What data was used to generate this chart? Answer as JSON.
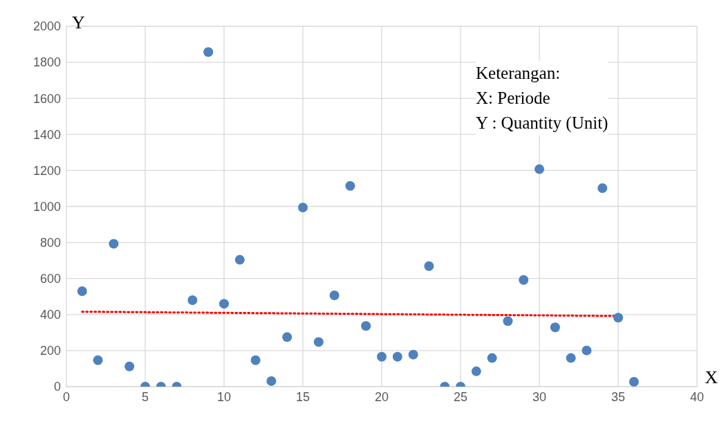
{
  "chart_data": {
    "type": "scatter",
    "xlabel": "X",
    "ylabel": "Y",
    "annotations": [
      "Keterangan:",
      "X: Periode",
      "Y : Quantity (Unit)"
    ],
    "xlim": [
      0,
      40
    ],
    "xticks": [
      0,
      5,
      10,
      15,
      20,
      25,
      30,
      35,
      40
    ],
    "ylim": [
      0,
      2000
    ],
    "yticks": [
      0,
      200,
      400,
      600,
      800,
      1000,
      1200,
      1400,
      1600,
      1800,
      2000
    ],
    "grid": true,
    "series": [
      {
        "color": "#4f81bd",
        "marker": "circle",
        "x": [
          1,
          2,
          3,
          4,
          5,
          6,
          7,
          8,
          9,
          10,
          11,
          12,
          13,
          14,
          15,
          16,
          17,
          18,
          19,
          20,
          21,
          22,
          23,
          24,
          25,
          26,
          27,
          28,
          29,
          30,
          31,
          32,
          33,
          34,
          35,
          36
        ],
        "values": [
          530,
          147,
          793,
          112,
          0,
          0,
          0,
          480,
          1857,
          460,
          704,
          147,
          31,
          275,
          994,
          248,
          507,
          1114,
          337,
          166,
          166,
          178,
          669,
          0,
          0,
          85,
          159,
          364,
          592,
          1207,
          329,
          159,
          201,
          1102,
          383,
          27
        ]
      },
      {
        "type": "line",
        "color": "#ff0000",
        "marker": "none",
        "line_style": "dotted",
        "x": [
          1,
          35
        ],
        "values": [
          416,
          392
        ]
      }
    ]
  }
}
